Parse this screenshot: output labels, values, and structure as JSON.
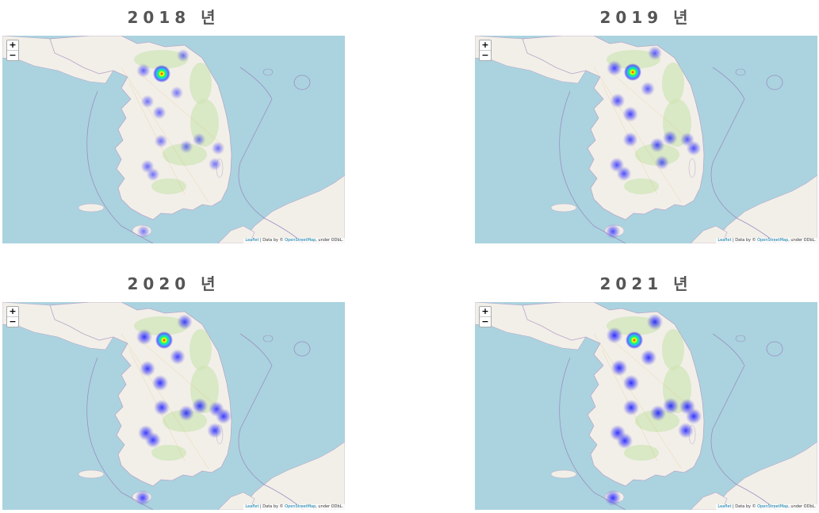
{
  "panels": [
    {
      "year_title": "2018 년",
      "heat": [
        [
          201,
          93,
          1.0
        ],
        [
          178,
          89,
          0.45
        ],
        [
          228,
          70,
          0.3
        ],
        [
          183,
          128,
          0.35
        ],
        [
          198,
          142,
          0.4
        ],
        [
          220,
          117,
          0.3
        ],
        [
          200,
          178,
          0.35
        ],
        [
          232,
          185,
          0.35
        ],
        [
          248,
          176,
          0.3
        ],
        [
          272,
          187,
          0.35
        ],
        [
          268,
          207,
          0.3
        ],
        [
          183,
          210,
          0.4
        ],
        [
          190,
          220,
          0.35
        ],
        [
          178,
          292,
          0.3
        ]
      ]
    },
    {
      "year_title": "2019 년",
      "heat": [
        [
          199,
          91,
          1.0
        ],
        [
          176,
          86,
          0.7
        ],
        [
          227,
          67,
          0.5
        ],
        [
          218,
          112,
          0.5
        ],
        [
          180,
          127,
          0.6
        ],
        [
          196,
          144,
          0.7
        ],
        [
          196,
          176,
          0.6
        ],
        [
          230,
          183,
          0.6
        ],
        [
          246,
          174,
          0.6
        ],
        [
          268,
          176,
          0.5
        ],
        [
          276,
          187,
          0.6
        ],
        [
          236,
          205,
          0.5
        ],
        [
          179,
          208,
          0.6
        ],
        [
          188,
          219,
          0.6
        ],
        [
          174,
          292,
          0.6
        ]
      ]
    },
    {
      "year_title": "2020 년",
      "heat": [
        [
          204,
          93,
          1.0
        ],
        [
          179,
          89,
          0.8
        ],
        [
          230,
          70,
          0.7
        ],
        [
          221,
          114,
          0.7
        ],
        [
          183,
          129,
          0.75
        ],
        [
          199,
          147,
          0.8
        ],
        [
          201,
          178,
          0.75
        ],
        [
          232,
          185,
          0.75
        ],
        [
          249,
          176,
          0.75
        ],
        [
          270,
          180,
          0.7
        ],
        [
          279,
          189,
          0.75
        ],
        [
          268,
          207,
          0.7
        ],
        [
          181,
          210,
          0.75
        ],
        [
          190,
          219,
          0.75
        ],
        [
          177,
          292,
          0.7
        ]
      ]
    },
    {
      "year_title": "2021 년",
      "heat": [
        [
          201,
          93,
          1.0
        ],
        [
          176,
          87,
          0.85
        ],
        [
          227,
          70,
          0.8
        ],
        [
          219,
          115,
          0.8
        ],
        [
          182,
          128,
          0.85
        ],
        [
          197,
          147,
          0.85
        ],
        [
          197,
          178,
          0.8
        ],
        [
          231,
          185,
          0.8
        ],
        [
          247,
          176,
          0.8
        ],
        [
          268,
          177,
          0.8
        ],
        [
          276,
          189,
          0.8
        ],
        [
          266,
          207,
          0.75
        ],
        [
          180,
          210,
          0.8
        ],
        [
          189,
          220,
          0.8
        ],
        [
          174,
          292,
          0.8
        ]
      ]
    }
  ],
  "zoom": {
    "in": "+",
    "out": "−"
  },
  "attribution": {
    "leaflet": "Leaflet",
    "data_by": " | Data by © ",
    "osm": "OpenStreetMap",
    "under": ", under ODbL."
  },
  "colors": {
    "sea": "#aad3df",
    "land": "#f2efe9",
    "green": "#cfe5b5",
    "hot": "#ff0000",
    "cool": "#0000ff"
  }
}
